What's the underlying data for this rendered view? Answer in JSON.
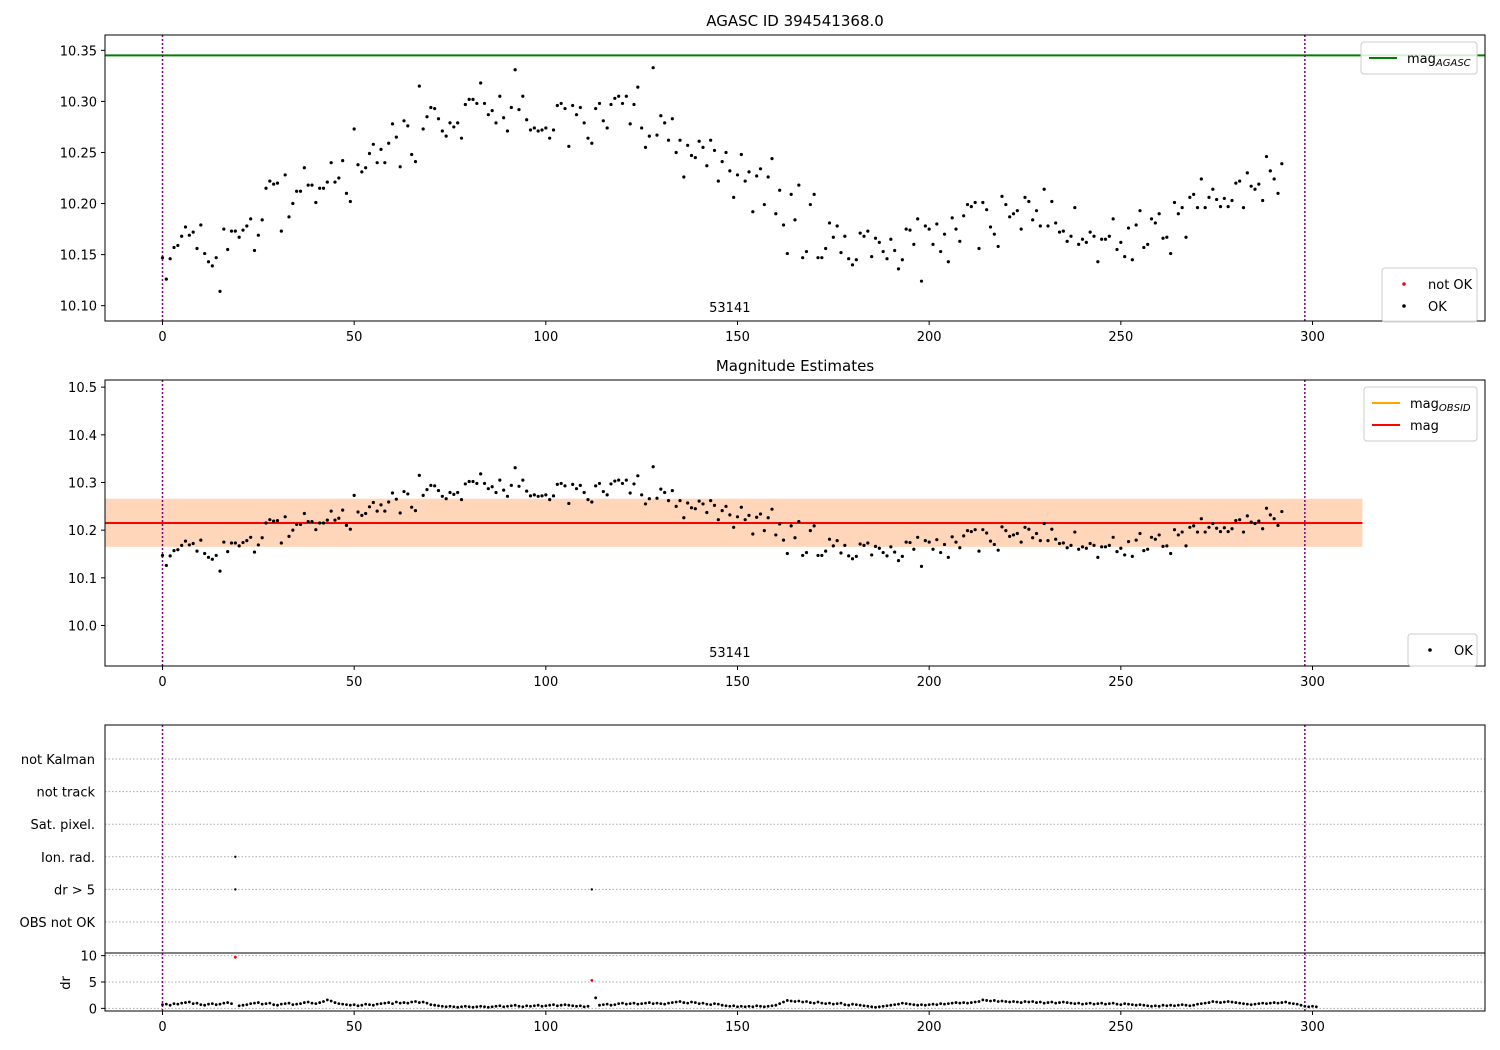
{
  "chart_data": [
    {
      "type": "scatter",
      "title": "AGASC ID 394541368.0",
      "xlim": [
        -15,
        345
      ],
      "ylim": [
        10.085,
        10.365
      ],
      "xticks": [
        0,
        50,
        100,
        150,
        200,
        250,
        300
      ],
      "yticks": [
        10.1,
        10.15,
        10.2,
        10.25,
        10.3,
        10.35
      ],
      "ytick_labels": [
        "10.10",
        "10.15",
        "10.20",
        "10.25",
        "10.30",
        "10.35"
      ],
      "obsid_label": "53141",
      "obsid_label_x": 148,
      "hlines": [
        {
          "name": "mag_AGASC",
          "value": 10.345,
          "color": "#008000"
        }
      ],
      "vlines": [
        0,
        298
      ],
      "legend_top": {
        "placement": "top-right",
        "entries": [
          {
            "label": "mag",
            "sub": "AGASC",
            "color": "#008000",
            "kind": "line"
          }
        ]
      },
      "legend_bottom": {
        "placement": "bottom-right",
        "entries": [
          {
            "label": "not OK",
            "color": "#ff0000",
            "kind": "dot"
          },
          {
            "label": "OK",
            "color": "#000000",
            "kind": "dot"
          }
        ]
      },
      "series": [
        {
          "name": "OK",
          "color": "#000000",
          "x_start": 0,
          "x_step": 1,
          "values_ref": "mag_series"
        }
      ]
    },
    {
      "type": "scatter",
      "title": "Magnitude Estimates",
      "xlim": [
        -15,
        345
      ],
      "ylim": [
        9.915,
        10.515
      ],
      "xticks": [
        0,
        50,
        100,
        150,
        200,
        250,
        300
      ],
      "yticks": [
        10.0,
        10.1,
        10.2,
        10.3,
        10.4,
        10.5
      ],
      "ytick_labels": [
        "10.0",
        "10.1",
        "10.2",
        "10.3",
        "10.4",
        "10.5"
      ],
      "obsid_label": "53141",
      "obsid_label_x": 148,
      "mean_mag": 10.215,
      "band": [
        10.165,
        10.266
      ],
      "band_x": [
        -15,
        313
      ],
      "mag_obsid": {
        "value": 10.215,
        "x": [
          -15,
          313
        ],
        "color": "#ffa500"
      },
      "vlines": [
        0,
        298
      ],
      "legend_top": {
        "placement": "top-right",
        "entries": [
          {
            "label": "mag",
            "sub": "OBSID",
            "color": "#ffa500",
            "kind": "line"
          },
          {
            "label": "mag",
            "sub": "",
            "color": "#ff0000",
            "kind": "line"
          }
        ]
      },
      "legend_bottom": {
        "placement": "bottom-right",
        "entries": [
          {
            "label": "OK",
            "color": "#000000",
            "kind": "dot"
          }
        ]
      }
    },
    {
      "type": "scatter",
      "xlim": [
        -15,
        345
      ],
      "xticks": [
        0,
        50,
        100,
        150,
        200,
        250,
        300
      ],
      "flag_rows": [
        "not Kalman",
        "not track",
        "Sat. pixel.",
        "Ion. rad.",
        "dr > 5",
        "OBS not OK"
      ],
      "flags": [
        {
          "row": "Ion. rad.",
          "x": 19
        },
        {
          "row": "dr > 5",
          "x": 19
        },
        {
          "row": "dr > 5",
          "x": 112
        }
      ],
      "vlines": [
        0,
        298
      ]
    },
    {
      "type": "scatter",
      "ylabel": "dr",
      "xlim": [
        -15,
        345
      ],
      "ylim": [
        -0.5,
        10.5
      ],
      "xticks": [
        0,
        50,
        100,
        150,
        200,
        250,
        300
      ],
      "yticks": [
        0,
        5,
        10
      ],
      "ytick_labels": [
        "0",
        "5",
        "10"
      ],
      "red_points": [
        {
          "x": 19,
          "y": 9.7
        },
        {
          "x": 112,
          "y": 5.3
        }
      ],
      "dr_series": [
        0.7,
        0.8,
        0.6,
        0.9,
        0.8,
        1.0,
        1.1,
        1.2,
        0.9,
        1.0,
        0.7,
        0.6,
        0.8,
        0.9,
        0.7,
        0.8,
        1.0,
        1.1,
        0.9,
        9.7,
        0.5,
        0.6,
        0.7,
        0.9,
        1.0,
        1.1,
        0.8,
        0.9,
        1.0,
        0.7,
        0.6,
        0.8,
        0.9,
        1.0,
        0.7,
        0.8,
        0.9,
        1.1,
        1.2,
        1.0,
        0.9,
        1.1,
        1.3,
        1.6,
        1.4,
        1.1,
        0.9,
        0.8,
        0.7,
        0.6,
        0.7,
        0.5,
        0.6,
        0.8,
        0.7,
        0.6,
        0.8,
        0.9,
        1.0,
        1.1,
        0.9,
        1.2,
        1.0,
        1.1,
        1.0,
        1.2,
        1.3,
        1.1,
        1.2,
        1.0,
        0.7,
        0.6,
        0.5,
        0.4,
        0.3,
        0.4,
        0.3,
        0.2,
        0.3,
        0.4,
        0.3,
        0.2,
        0.3,
        0.4,
        0.3,
        0.2,
        0.3,
        0.4,
        0.5,
        0.3,
        0.4,
        0.5,
        0.6,
        0.4,
        0.3,
        0.5,
        0.4,
        0.5,
        0.6,
        0.4,
        0.5,
        0.6,
        0.7,
        0.5,
        0.6,
        0.7,
        0.6,
        0.5,
        0.4,
        0.5,
        0.3,
        0.4,
        5.3,
        2.0,
        0.6,
        0.7,
        0.8,
        0.6,
        0.7,
        0.9,
        1.0,
        0.8,
        0.9,
        1.0,
        0.8,
        0.9,
        1.0,
        1.1,
        0.9,
        1.0,
        0.9,
        0.8,
        1.0,
        1.1,
        1.2,
        1.3,
        1.1,
        1.0,
        1.2,
        1.1,
        0.9,
        1.0,
        0.8,
        0.7,
        0.9,
        0.8,
        0.6,
        0.5,
        0.4,
        0.5,
        0.3,
        0.4,
        0.3,
        0.4,
        0.3,
        0.5,
        0.4,
        0.3,
        0.4,
        0.5,
        0.6,
        0.9,
        1.2,
        1.5,
        1.4,
        1.3,
        1.4,
        1.2,
        1.3,
        1.1,
        1.0,
        1.2,
        1.0,
        0.9,
        1.0,
        0.8,
        0.9,
        1.0,
        0.7,
        0.6,
        0.8,
        0.7,
        0.6,
        0.5,
        0.4,
        0.3,
        0.2,
        0.3,
        0.4,
        0.5,
        0.6,
        0.7,
        0.8,
        1.0,
        0.9,
        0.8,
        0.7,
        0.6,
        0.7,
        0.6,
        0.7,
        0.8,
        0.7,
        0.9,
        0.8,
        0.9,
        1.0,
        1.1,
        1.0,
        1.1,
        1.0,
        1.1,
        1.2,
        1.3,
        1.6,
        1.5,
        1.4,
        1.5,
        1.3,
        1.4,
        1.3,
        1.2,
        1.3,
        1.2,
        1.1,
        1.3,
        1.2,
        1.3,
        1.1,
        1.2,
        1.0,
        1.1,
        1.2,
        1.0,
        1.1,
        1.2,
        1.1,
        1.0,
        0.9,
        1.0,
        0.8,
        0.9,
        1.0,
        0.8,
        0.9,
        1.0,
        0.8,
        0.9,
        1.0,
        0.8,
        0.7,
        0.9,
        0.8,
        0.7,
        0.6,
        0.7,
        0.6,
        0.5,
        0.4,
        0.5,
        0.4,
        0.6,
        0.5,
        0.6,
        0.5,
        0.6,
        0.7,
        0.6,
        0.5,
        0.6,
        0.8,
        0.9,
        1.0,
        1.1,
        1.3,
        1.2,
        1.1,
        1.2,
        1.3,
        1.2,
        1.1,
        1.0,
        0.9,
        0.8,
        0.7,
        0.8,
        0.9,
        1.0,
        0.9,
        1.0,
        1.1,
        1.0,
        1.1,
        1.2,
        1.0,
        0.9,
        0.8,
        0.6,
        0.4,
        0.3,
        0.4,
        0.3
      ],
      "vlines": [
        0,
        298
      ]
    }
  ],
  "mag_series": [
    10.147,
    10.126,
    10.146,
    10.157,
    10.159,
    10.168,
    10.177,
    10.169,
    10.172,
    10.156,
    10.179,
    10.151,
    10.143,
    10.139,
    10.147,
    10.114,
    10.175,
    10.155,
    10.173,
    10.173,
    10.167,
    10.174,
    10.178,
    10.185,
    10.154,
    10.169,
    10.184,
    10.215,
    10.222,
    10.219,
    10.22,
    10.173,
    10.228,
    10.187,
    10.2,
    10.212,
    10.212,
    10.235,
    10.218,
    10.218,
    10.201,
    10.215,
    10.215,
    10.221,
    10.24,
    10.221,
    10.225,
    10.242,
    10.21,
    10.202,
    10.273,
    10.238,
    10.231,
    10.235,
    10.249,
    10.258,
    10.24,
    10.253,
    10.24,
    10.259,
    10.278,
    10.265,
    10.236,
    10.281,
    10.276,
    10.248,
    10.241,
    10.315,
    10.273,
    10.285,
    10.294,
    10.293,
    10.283,
    10.271,
    10.266,
    10.279,
    10.275,
    10.279,
    10.264,
    10.297,
    10.302,
    10.302,
    10.298,
    10.318,
    10.298,
    10.287,
    10.291,
    10.279,
    10.305,
    10.284,
    10.271,
    10.294,
    10.331,
    10.292,
    10.305,
    10.282,
    10.272,
    10.274,
    10.271,
    10.272,
    10.274,
    10.264,
    10.272,
    10.296,
    10.298,
    10.293,
    10.256,
    10.296,
    10.287,
    10.294,
    10.279,
    10.264,
    10.259,
    10.293,
    10.298,
    10.281,
    10.274,
    10.297,
    10.303,
    10.305,
    10.298,
    10.305,
    10.278,
    10.297,
    10.314,
    10.274,
    10.255,
    10.266,
    10.333,
    10.267,
    10.286,
    10.279,
    10.262,
    10.283,
    10.25,
    10.262,
    10.226,
    10.257,
    10.247,
    10.245,
    10.261,
    10.255,
    10.237,
    10.262,
    10.252,
    10.222,
    10.241,
    10.25,
    10.232,
    10.206,
    10.228,
    10.248,
    10.222,
    10.231,
    10.192,
    10.227,
    10.234,
    10.199,
    10.226,
    10.244,
    10.19,
    10.213,
    10.179,
    10.151,
    10.209,
    10.184,
    10.218,
    10.147,
    10.153,
    10.199,
    10.209,
    10.147,
    10.147,
    10.156,
    10.181,
    10.167,
    10.178,
    10.152,
    10.168,
    10.146,
    10.14,
    10.145,
    10.171,
    10.168,
    10.173,
    10.148,
    10.166,
    10.162,
    10.153,
    10.146,
    10.165,
    10.154,
    10.136,
    10.145,
    10.175,
    10.174,
    10.16,
    10.185,
    10.124,
    10.178,
    10.175,
    10.16,
    10.18,
    10.153,
    10.17,
    10.143,
    10.186,
    10.175,
    10.163,
    10.188,
    10.199,
    10.197,
    10.201,
    10.156,
    10.201,
    10.194,
    10.177,
    10.17,
    10.158,
    10.207,
    10.199,
    10.187,
    10.19,
    10.193,
    10.175,
    10.206,
    10.202,
    10.184,
    10.193,
    10.178,
    10.214,
    10.178,
    10.202,
    10.181,
    10.172,
    10.173,
    10.163,
    10.168,
    10.196,
    10.16,
    10.165,
    10.162,
    10.172,
    10.168,
    10.143,
    10.165,
    10.165,
    10.168,
    10.185,
    10.155,
    10.162,
    10.148,
    10.176,
    10.145,
    10.179,
    10.193,
    10.157,
    10.16,
    10.185,
    10.181,
    10.19,
    10.166,
    10.167,
    10.151,
    10.201,
    10.19,
    10.196,
    10.167,
    10.206,
    10.209,
    10.196,
    10.224,
    10.196,
    10.206,
    10.214,
    10.204,
    10.197,
    10.205,
    10.197,
    10.203,
    10.22,
    10.222,
    10.196,
    10.23,
    10.217,
    10.214,
    10.219,
    10.203,
    10.246,
    10.232,
    10.224,
    10.21,
    10.239
  ]
}
